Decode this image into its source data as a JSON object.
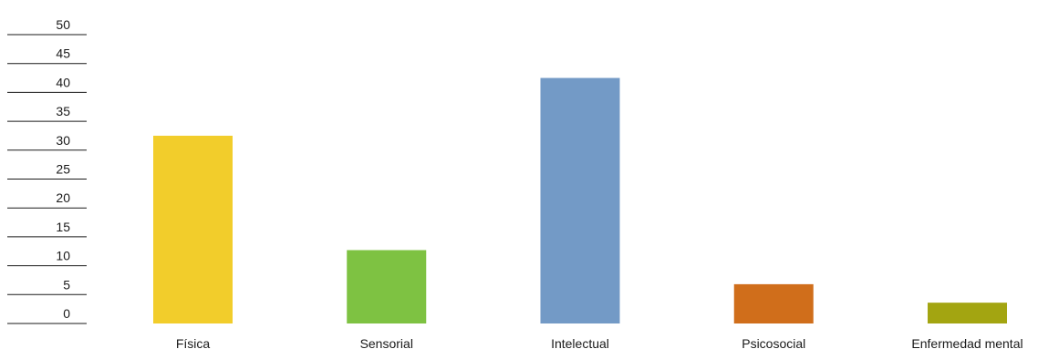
{
  "chart_data": {
    "type": "bar",
    "title": "",
    "xlabel": "",
    "ylabel": "",
    "ylim": [
      0,
      50
    ],
    "yticks": [
      0,
      5,
      10,
      15,
      20,
      25,
      30,
      35,
      40,
      45,
      50
    ],
    "ytick_labels": [
      "0",
      "5",
      "10",
      "15",
      "20",
      "25",
      "30",
      "35",
      "40",
      "45",
      "50"
    ],
    "categories": [
      "Física",
      "Sensorial",
      "Intelectual",
      "Psicosocial",
      "Enfermedad mental"
    ],
    "values": [
      32.5,
      12.7,
      42.5,
      6.8,
      3.6
    ],
    "colors": [
      "#f2cd2b",
      "#7ec242",
      "#739ac6",
      "#d06e1b",
      "#a3a511"
    ],
    "grid": false,
    "legend": "none"
  }
}
